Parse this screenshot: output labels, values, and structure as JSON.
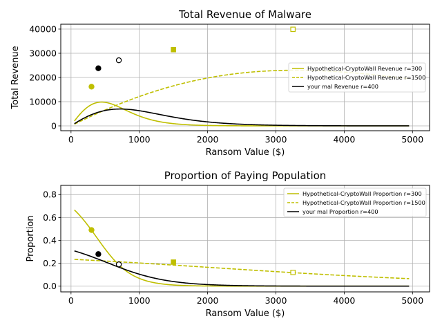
{
  "chart_data": [
    {
      "type": "line",
      "title": "Total Revenue of Malware",
      "xlabel": "Ransom Value ($)",
      "ylabel": "Total Revenue",
      "xlim": [
        -150,
        5250
      ],
      "ylim": [
        -2000,
        42000
      ],
      "xticks": [
        0,
        1000,
        2000,
        3000,
        4000,
        5000
      ],
      "yticks": [
        0,
        10000,
        20000,
        30000,
        40000
      ],
      "grid": true,
      "legend_position": "center-right",
      "series": [
        {
          "name": "Hypothetical-CryptoWall Revenue r=300",
          "color": "#bfbf00",
          "dash": "solid",
          "kind": "revenue",
          "r": 300,
          "tmax": 0.85,
          "s": 0.00245,
          "scale": 1,
          "peak_marker": "circle-filled"
        },
        {
          "name": "Hypothetical-CryptoWall Revenue r=1500",
          "color": "#bfbf00",
          "dash": "dashed",
          "kind": "revenue",
          "r": 1500,
          "tmax": 0.32,
          "s": 0.0003,
          "scale": 1,
          "peak_marker": "square-filled"
        },
        {
          "name": "your mal Revenue r=400",
          "color": "#000000",
          "dash": "solid",
          "kind": "revenue",
          "r": 400,
          "tmax": 0.41,
          "s": 0.00143,
          "scale": 1,
          "peak_marker": "circle-filled"
        }
      ],
      "highlight_points": [
        {
          "x": 300,
          "y": 16200,
          "marker": "circle",
          "filled": true,
          "color": "#bfbf00"
        },
        {
          "x": 1500,
          "y": 31500,
          "marker": "square",
          "filled": true,
          "color": "#bfbf00"
        },
        {
          "x": 3250,
          "y": 39900,
          "marker": "square",
          "filled": false,
          "color": "#bfbf00"
        },
        {
          "x": 400,
          "y": 23800,
          "marker": "circle",
          "filled": true,
          "color": "#000000"
        },
        {
          "x": 700,
          "y": 27100,
          "marker": "circle",
          "filled": false,
          "color": "#000000"
        }
      ]
    },
    {
      "type": "line",
      "title": "Proportion of Paying Population",
      "xlabel": "Ransom Value ($)",
      "ylabel": "Proportion",
      "xlim": [
        -150,
        5250
      ],
      "ylim": [
        -0.05,
        0.88
      ],
      "xticks": [
        0,
        1000,
        2000,
        3000,
        4000,
        5000
      ],
      "yticks": [
        0.0,
        0.2,
        0.4,
        0.6,
        0.8
      ],
      "grid": true,
      "legend_position": "top-right",
      "series": [
        {
          "name": "Hypothetical-CryptoWall Proportion r=300",
          "color": "#bfbf00",
          "dash": "solid",
          "kind": "proportion",
          "r": 300,
          "tmax": 0.85,
          "s": 0.00245
        },
        {
          "name": "Hypothetical-CryptoWall Proportion r=1500",
          "color": "#bfbf00",
          "dash": "dashed",
          "kind": "proportion",
          "r": 1500,
          "tmax": 0.32,
          "s": 0.0003
        },
        {
          "name": "your mal Proportion r=400",
          "color": "#000000",
          "dash": "solid",
          "kind": "proportion",
          "r": 400,
          "tmax": 0.41,
          "s": 0.00143
        }
      ],
      "highlight_points": [
        {
          "x": 300,
          "y": 0.49,
          "marker": "circle",
          "filled": true,
          "color": "#bfbf00"
        },
        {
          "x": 1500,
          "y": 0.21,
          "marker": "square",
          "filled": true,
          "color": "#bfbf00"
        },
        {
          "x": 3250,
          "y": 0.12,
          "marker": "square",
          "filled": false,
          "color": "#bfbf00"
        },
        {
          "x": 400,
          "y": 0.28,
          "marker": "circle",
          "filled": true,
          "color": "#000000"
        },
        {
          "x": 700,
          "y": 0.19,
          "marker": "circle",
          "filled": false,
          "color": "#000000"
        }
      ]
    }
  ]
}
